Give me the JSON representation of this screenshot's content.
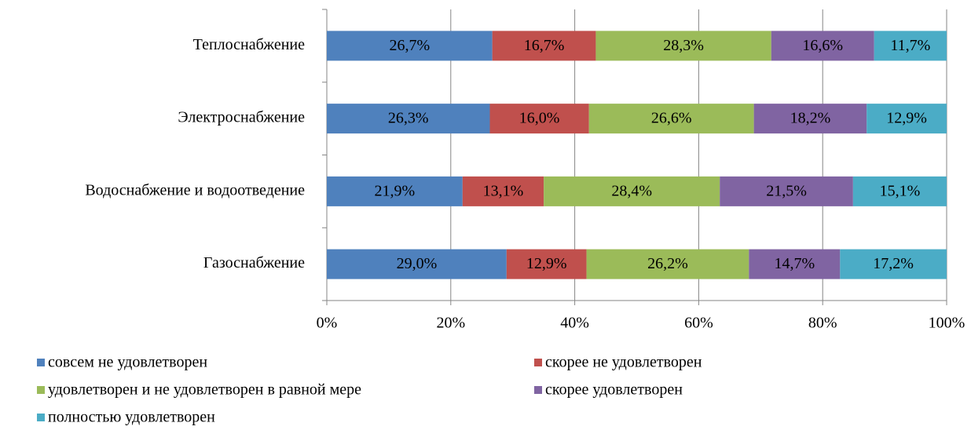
{
  "chart_data": {
    "type": "stacked_barh",
    "categories": [
      "Теплоснабжение",
      "Электроснабжение",
      "Водоснабжение и водоотведение",
      "Газоснабжение"
    ],
    "series": [
      {
        "name": "совсем не удовлетворен",
        "color": "#4f81bd",
        "values": [
          26.7,
          26.3,
          21.9,
          29.0
        ],
        "value_labels": [
          "26,7%",
          "26,3%",
          "21,9%",
          "29,0%"
        ]
      },
      {
        "name": "скорее не удовлетворен",
        "color": "#c0504d",
        "values": [
          16.7,
          16.0,
          13.1,
          12.9
        ],
        "value_labels": [
          "16,7%",
          "16,0%",
          "13,1%",
          "12,9%"
        ]
      },
      {
        "name": "удовлетворен и не удовлетворен в равной мере",
        "color": "#9bbb59",
        "values": [
          28.3,
          26.6,
          28.4,
          26.2
        ],
        "value_labels": [
          "28,3%",
          "26,6%",
          "28,4%",
          "26,2%"
        ]
      },
      {
        "name": "скорее удовлетворен",
        "color": "#8064a2",
        "values": [
          16.6,
          18.2,
          21.5,
          14.7
        ],
        "value_labels": [
          "16,6%",
          "18,2%",
          "21,5%",
          "14,7%"
        ]
      },
      {
        "name": "полностью удовлетворен",
        "color": "#4bacc6",
        "values": [
          11.7,
          12.9,
          15.1,
          17.2
        ],
        "value_labels": [
          "11,7%",
          "12,9%",
          "15,1%",
          "17,2%"
        ]
      }
    ],
    "xlim": [
      0,
      100
    ],
    "xticks": [
      {
        "value": 0,
        "label": "0%"
      },
      {
        "value": 20,
        "label": "20%"
      },
      {
        "value": 40,
        "label": "40%"
      },
      {
        "value": 60,
        "label": "60%"
      },
      {
        "value": 80,
        "label": "80%"
      },
      {
        "value": 100,
        "label": "100%"
      }
    ],
    "grid": true
  }
}
